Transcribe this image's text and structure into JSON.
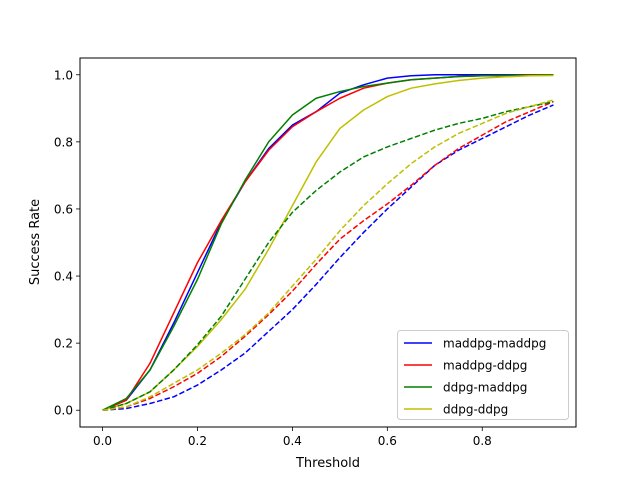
{
  "chart_data": {
    "type": "line",
    "title": "",
    "xlabel": "Threshold",
    "ylabel": "Success Rate",
    "xlim": [
      -0.0475,
      0.9975
    ],
    "ylim": [
      -0.05,
      1.05
    ],
    "xticks": [
      0.0,
      0.2,
      0.4,
      0.6,
      0.8
    ],
    "xtick_labels": [
      "0.0",
      "0.2",
      "0.4",
      "0.6",
      "0.8"
    ],
    "yticks": [
      0.0,
      0.2,
      0.4,
      0.6,
      0.8,
      1.0
    ],
    "ytick_labels": [
      "0.0",
      "0.2",
      "0.4",
      "0.6",
      "0.8",
      "1.0"
    ],
    "grid": false,
    "legend_position": "bottom-right",
    "legend": [
      {
        "label": "maddpg-maddpg",
        "color": "#0000ff"
      },
      {
        "label": "maddpg-ddpg",
        "color": "#ff0000"
      },
      {
        "label": "ddpg-maddpg",
        "color": "#008000"
      },
      {
        "label": "ddpg-ddpg",
        "color": "#bfbf00"
      }
    ],
    "x": [
      0.0,
      0.05,
      0.1,
      0.15,
      0.2,
      0.25,
      0.3,
      0.35,
      0.4,
      0.45,
      0.5,
      0.55,
      0.6,
      0.65,
      0.7,
      0.75,
      0.8,
      0.85,
      0.9,
      0.95
    ],
    "series": [
      {
        "color": "#0000ff",
        "dash": "solid",
        "values": [
          0.0,
          0.03,
          0.12,
          0.26,
          0.41,
          0.56,
          0.68,
          0.78,
          0.85,
          0.89,
          0.945,
          0.97,
          0.99,
          0.997,
          1.0,
          1.0,
          1.0,
          1.0,
          1.0,
          1.0
        ]
      },
      {
        "color": "#ff0000",
        "dash": "solid",
        "values": [
          0.0,
          0.03,
          0.14,
          0.29,
          0.44,
          0.565,
          0.68,
          0.775,
          0.845,
          0.89,
          0.93,
          0.96,
          0.975,
          0.985,
          0.99,
          0.995,
          0.997,
          0.998,
          1.0,
          1.0
        ]
      },
      {
        "color": "#008000",
        "dash": "solid",
        "values": [
          0.0,
          0.035,
          0.12,
          0.25,
          0.39,
          0.555,
          0.685,
          0.8,
          0.88,
          0.93,
          0.95,
          0.965,
          0.975,
          0.985,
          0.99,
          0.995,
          0.997,
          0.998,
          0.999,
          1.0
        ]
      },
      {
        "color": "#bfbf00",
        "dash": "solid",
        "values": [
          0.0,
          0.02,
          0.055,
          0.12,
          0.19,
          0.27,
          0.36,
          0.48,
          0.61,
          0.74,
          0.84,
          0.895,
          0.935,
          0.96,
          0.973,
          0.983,
          0.99,
          0.994,
          0.997,
          0.998
        ]
      },
      {
        "color": "#0000ff",
        "dash": "dashed",
        "values": [
          0.0,
          0.005,
          0.02,
          0.04,
          0.075,
          0.12,
          0.17,
          0.235,
          0.3,
          0.375,
          0.455,
          0.53,
          0.6,
          0.665,
          0.73,
          0.775,
          0.81,
          0.845,
          0.88,
          0.91
        ]
      },
      {
        "color": "#ff0000",
        "dash": "dashed",
        "values": [
          0.0,
          0.01,
          0.035,
          0.07,
          0.11,
          0.16,
          0.22,
          0.285,
          0.355,
          0.435,
          0.51,
          0.565,
          0.615,
          0.67,
          0.73,
          0.78,
          0.82,
          0.86,
          0.89,
          0.92
        ]
      },
      {
        "color": "#008000",
        "dash": "dashed",
        "values": [
          0.0,
          0.02,
          0.055,
          0.12,
          0.195,
          0.28,
          0.39,
          0.5,
          0.59,
          0.655,
          0.71,
          0.755,
          0.785,
          0.81,
          0.835,
          0.855,
          0.87,
          0.89,
          0.905,
          0.92
        ]
      },
      {
        "color": "#bfbf00",
        "dash": "dashed",
        "values": [
          0.0,
          0.01,
          0.04,
          0.08,
          0.12,
          0.17,
          0.225,
          0.29,
          0.37,
          0.45,
          0.535,
          0.61,
          0.675,
          0.735,
          0.785,
          0.825,
          0.855,
          0.885,
          0.905,
          0.925
        ]
      }
    ]
  }
}
